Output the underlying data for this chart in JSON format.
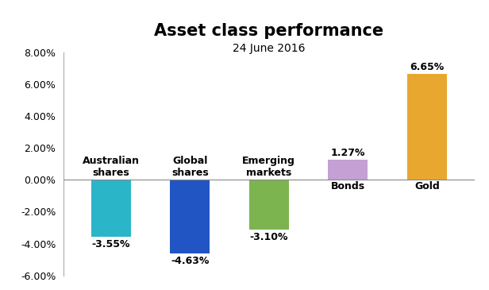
{
  "title": "Asset class performance",
  "subtitle": "24 June 2016",
  "categories": [
    "Australian\nshares",
    "Global\nshares",
    "Emerging\nmarkets",
    "Bonds",
    "Gold"
  ],
  "values": [
    -3.55,
    -4.63,
    -3.1,
    1.27,
    6.65
  ],
  "bar_colors": [
    "#2BB5C8",
    "#2255C4",
    "#7CB550",
    "#C4A0D5",
    "#E8A830"
  ],
  "value_labels": [
    "-3.55%",
    "-4.63%",
    "-3.10%",
    "1.27%",
    "6.65%"
  ],
  "ylim": [
    -6.0,
    8.0
  ],
  "yticks": [
    -6.0,
    -4.0,
    -2.0,
    0.0,
    2.0,
    4.0,
    6.0,
    8.0
  ],
  "background_color": "#ffffff",
  "title_fontsize": 15,
  "subtitle_fontsize": 10,
  "value_label_fontsize": 9,
  "cat_label_fontsize": 9,
  "tick_fontsize": 9,
  "bar_width": 0.5
}
